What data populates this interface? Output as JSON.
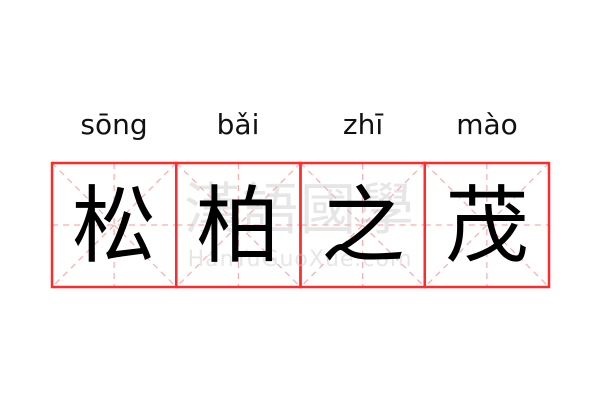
{
  "entries": [
    {
      "pinyin": "sōng",
      "char": "松"
    },
    {
      "pinyin": "bǎi",
      "char": "柏"
    },
    {
      "pinyin": "zhī",
      "char": "之"
    },
    {
      "pinyin": "mào",
      "char": "茂"
    }
  ],
  "watermark": {
    "logo": "漢語國學",
    "site": "HanYuGuoXue.com"
  },
  "colors": {
    "border": "#ff2a2a",
    "guide": "#ffaaaa",
    "text": "#000000"
  }
}
